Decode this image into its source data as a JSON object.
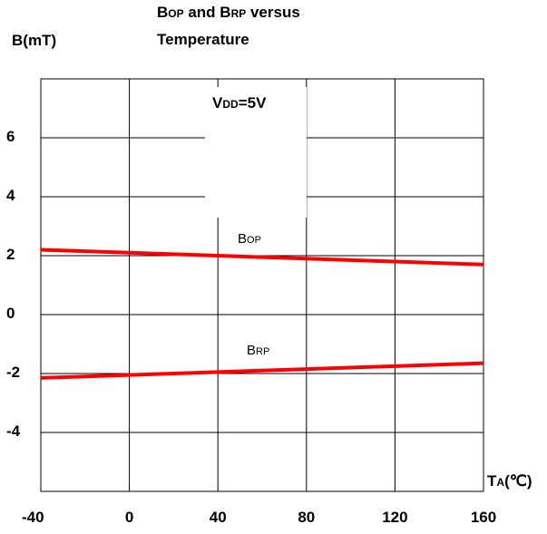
{
  "chart_data": {
    "type": "line",
    "title": {
      "b": "B",
      "op": "OP",
      "and": " and ",
      "b2": "B",
      "rp": "RP",
      "rest": " versus",
      "line2": "Temperature"
    },
    "ylabel": "B(mT)",
    "xlabel": {
      "t": "T",
      "a": "A",
      "unit": "(℃)"
    },
    "annotation": {
      "v": "V",
      "dd": "DD",
      "val": "=5V"
    },
    "x_ticks": [
      "-40",
      "0",
      "40",
      "80",
      "120",
      "160"
    ],
    "y_ticks": [
      "6",
      "4",
      "2",
      "0",
      "-2",
      "-4"
    ],
    "xlim": [
      -40,
      160
    ],
    "ylim": [
      -6,
      8
    ],
    "x_grid": [
      0,
      40,
      80,
      120
    ],
    "y_grid": [
      6,
      4,
      2,
      0,
      -2,
      -4
    ],
    "grid": true,
    "series": [
      {
        "name_main": "B",
        "name_sub": "OP",
        "color": "#ff0000",
        "x": [
          -40,
          0,
          40,
          80,
          120,
          160
        ],
        "y": [
          2.2,
          2.1,
          2.0,
          1.9,
          1.8,
          1.7
        ]
      },
      {
        "name_main": "B",
        "name_sub": "RP",
        "color": "#ff0000",
        "x": [
          -40,
          0,
          40,
          80,
          120,
          160
        ],
        "y": [
          -2.15,
          -2.05,
          -1.95,
          -1.85,
          -1.75,
          -1.65
        ]
      }
    ]
  }
}
